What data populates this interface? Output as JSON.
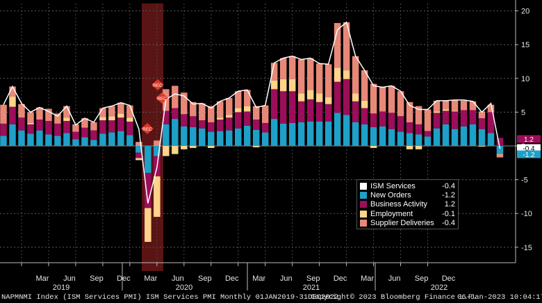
{
  "chart_data": {
    "type": "bar",
    "stacked": true,
    "x_start": "2019-01",
    "x_end": "2022-12",
    "y_ticks": [
      20,
      15,
      10,
      5,
      0,
      -5,
      -10,
      -15
    ],
    "ylim": [
      -17.5,
      21
    ],
    "recession_shading": {
      "from": "2020-03",
      "to": "2020-04",
      "color": "#5a1414"
    },
    "recession_markers": [
      "REC",
      "REC",
      "REC"
    ],
    "x_month_labels": [
      "Mar",
      "Jun",
      "Sep",
      "Dec",
      "Mar",
      "Jun",
      "Sep",
      "Dec",
      "Mar",
      "Jun",
      "Sep",
      "Dec",
      "Mar",
      "Jun",
      "Sep",
      "Dec"
    ],
    "x_year_labels": [
      "2019",
      "2020",
      "2021",
      "2022"
    ],
    "series": [
      {
        "name": "New Orders",
        "color": "#1ea0c8",
        "legend_value": "-1.2",
        "values": [
          1.5,
          3.2,
          2.3,
          1.8,
          2.3,
          1.7,
          1.5,
          1.9,
          1.0,
          1.3,
          0.9,
          1.8,
          2.0,
          2.2,
          1.6,
          -1.0,
          -4.0,
          -1.5,
          3.2,
          4.0,
          2.9,
          2.8,
          2.6,
          2.1,
          2.2,
          2.3,
          2.6,
          3.0,
          2.4,
          2.0,
          4.0,
          3.3,
          3.4,
          3.5,
          3.6,
          3.6,
          3.6,
          4.9,
          4.6,
          3.5,
          3.2,
          2.8,
          2.9,
          2.5,
          2.1,
          1.9,
          1.7,
          1.4,
          2.6,
          3.2,
          2.5,
          2.9,
          3.2,
          2.5,
          1.9,
          -1.2
        ]
      },
      {
        "name": "Business Activity",
        "color": "#9c0d5a",
        "legend_value": "1.2",
        "values": [
          1.8,
          2.6,
          1.9,
          1.4,
          1.6,
          2.0,
          1.8,
          1.8,
          1.1,
          1.4,
          1.4,
          2.0,
          1.8,
          2.0,
          2.0,
          -0.8,
          -5.2,
          -3.0,
          2.0,
          1.6,
          1.8,
          1.6,
          1.2,
          1.4,
          1.7,
          1.9,
          2.4,
          2.1,
          1.5,
          1.4,
          4.4,
          4.8,
          4.7,
          3.1,
          3.3,
          2.9,
          2.6,
          4.6,
          5.3,
          3.1,
          2.4,
          2.0,
          2.2,
          2.4,
          2.3,
          1.6,
          1.5,
          0.8,
          2.3,
          2.0,
          2.6,
          2.4,
          2.1,
          1.6,
          3.1,
          1.2
        ]
      },
      {
        "name": "Employment",
        "color": "#ffd38a",
        "legend_value": "-0.1",
        "values": [
          0.0,
          1.5,
          0.0,
          0.2,
          0.0,
          0.0,
          0.0,
          0.5,
          0.0,
          0.0,
          0.0,
          0.5,
          0.6,
          0.6,
          0.6,
          -0.3,
          -5.0,
          -6.0,
          -1.5,
          -1.2,
          -0.5,
          -0.3,
          0.0,
          -0.3,
          0.3,
          0.4,
          0.6,
          0.8,
          -0.2,
          0.0,
          1.3,
          1.8,
          1.8,
          1.2,
          1.4,
          1.3,
          1.0,
          2.1,
          1.3,
          1.2,
          1.1,
          -0.3,
          0.0,
          0.0,
          0.0,
          -0.5,
          -0.5,
          0.0,
          0.2,
          0.2,
          0.1,
          0.0,
          0.0,
          -0.1,
          0.0,
          -0.1
        ]
      },
      {
        "name": "Supplier Deliveries",
        "color": "#e88878",
        "legend_value": "-0.4",
        "values": [
          2.8,
          1.5,
          2.0,
          1.6,
          1.8,
          1.8,
          1.5,
          1.7,
          1.1,
          1.4,
          1.2,
          1.3,
          1.5,
          1.6,
          1.8,
          0.6,
          0.0,
          0.8,
          3.2,
          3.3,
          3.2,
          2.1,
          2.5,
          2.4,
          2.4,
          2.5,
          2.5,
          2.4,
          2.0,
          2.6,
          2.6,
          3.1,
          3.4,
          5.0,
          4.7,
          4.4,
          4.9,
          6.6,
          7.1,
          5.5,
          4.5,
          4.4,
          3.6,
          4.0,
          3.7,
          3.0,
          2.7,
          3.2,
          1.6,
          1.3,
          1.6,
          1.4,
          1.3,
          1.0,
          1.1,
          -0.4
        ]
      }
    ],
    "line": {
      "name": "ISM Services",
      "color": "#ffffff",
      "legend_value": "-0.4",
      "values": [
        6.1,
        8.8,
        6.3,
        5.0,
        5.7,
        5.1,
        4.4,
        5.9,
        3.1,
        4.1,
        3.5,
        5.6,
        5.9,
        6.4,
        6.0,
        2.5,
        -8.5,
        -3.2,
        6.9,
        7.7,
        7.4,
        6.2,
        6.3,
        5.6,
        6.6,
        7.1,
        8.1,
        8.3,
        5.7,
        6.0,
        12.3,
        13.0,
        13.3,
        12.8,
        13.0,
        12.2,
        12.1,
        17.2,
        18.3,
        13.3,
        11.2,
        8.9,
        8.7,
        8.9,
        8.1,
        6.0,
        5.4,
        5.4,
        6.7,
        6.7,
        6.8,
        6.8,
        6.6,
        5.0,
        6.3,
        -0.4
      ]
    },
    "right_labels": [
      {
        "text": "1.2",
        "color": "#9c0d5a",
        "value": 1.2
      },
      {
        "text": "-0.4",
        "color": "#ffffff",
        "value": -0.4
      },
      {
        "text": "-1.2",
        "color": "#1ea0c8",
        "value": -1.2
      }
    ]
  },
  "legend": {
    "items": [
      {
        "name": "ISM Services",
        "value": "-0.4",
        "color": "#ffffff"
      },
      {
        "name": "New Orders",
        "value": "-1.2",
        "color": "#1ea0c8"
      },
      {
        "name": "Business Activity",
        "value": "1.2",
        "color": "#9c0d5a"
      },
      {
        "name": "Employment",
        "value": "-0.1",
        "color": "#ffd38a"
      },
      {
        "name": "Supplier Deliveries",
        "value": "-0.4",
        "color": "#e88878"
      }
    ]
  },
  "footer": {
    "left": "NAPMNMI Index (ISM Services PMI) ISM Services PMI  Monthly 01JAN2019-31DEC2022",
    "middle": "Copyright© 2023 Bloomberg Finance L.P.",
    "right": "06-Jan-2023 10:04:17"
  }
}
